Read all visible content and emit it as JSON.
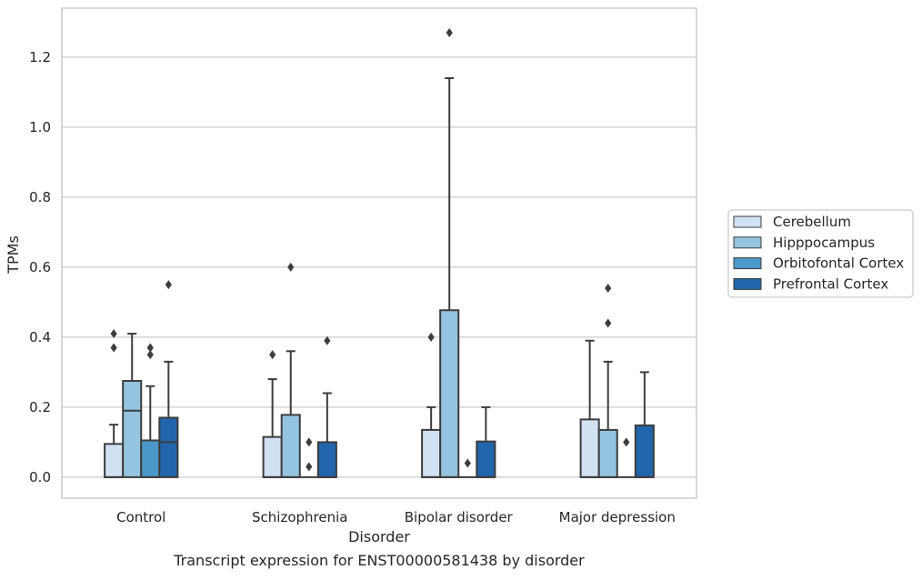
{
  "chart_data": {
    "type": "boxplot",
    "xlabel": "Disorder",
    "ylabel": "TPMs",
    "caption": "Transcript expression for ENST00000581438 by disorder",
    "ylim": [
      -0.06,
      1.34
    ],
    "yticks": [
      0.0,
      0.2,
      0.4,
      0.6,
      0.8,
      1.0,
      1.2
    ],
    "ytick_labels": [
      "0.0",
      "0.2",
      "0.4",
      "0.6",
      "0.8",
      "1.0",
      "1.2"
    ],
    "grid": "horizontal",
    "legend_position": "right-center",
    "categories": [
      "Control",
      "Schizophrenia",
      "Bipolar disorder",
      "Major depression"
    ],
    "series": [
      {
        "name": "Cerebellum",
        "color": "#d0e1f2",
        "boxes": [
          {
            "q1": 0.0,
            "median": 0.0,
            "q3": 0.095,
            "whisker_low": 0.0,
            "whisker_high": 0.15,
            "outliers": [
              0.37,
              0.41
            ]
          },
          {
            "q1": 0.0,
            "median": 0.0,
            "q3": 0.115,
            "whisker_low": 0.0,
            "whisker_high": 0.28,
            "outliers": [
              0.35
            ]
          },
          {
            "q1": 0.0,
            "median": 0.0,
            "q3": 0.135,
            "whisker_low": 0.0,
            "whisker_high": 0.2,
            "outliers": [
              0.4
            ]
          },
          {
            "q1": 0.0,
            "median": 0.0,
            "q3": 0.165,
            "whisker_low": 0.0,
            "whisker_high": 0.39,
            "outliers": []
          }
        ]
      },
      {
        "name": "Hipppocampus",
        "color": "#94c4df",
        "boxes": [
          {
            "q1": 0.0,
            "median": 0.19,
            "q3": 0.275,
            "whisker_low": 0.0,
            "whisker_high": 0.41,
            "outliers": []
          },
          {
            "q1": 0.0,
            "median": 0.0,
            "q3": 0.178,
            "whisker_low": 0.0,
            "whisker_high": 0.36,
            "outliers": [
              0.6
            ]
          },
          {
            "q1": 0.0,
            "median": 0.0,
            "q3": 0.477,
            "whisker_low": 0.0,
            "whisker_high": 1.14,
            "outliers": [
              1.27
            ]
          },
          {
            "q1": 0.0,
            "median": 0.0,
            "q3": 0.135,
            "whisker_low": 0.0,
            "whisker_high": 0.33,
            "outliers": [
              0.44,
              0.54
            ]
          }
        ]
      },
      {
        "name": "Orbitofontal Cortex",
        "color": "#4a98c9",
        "boxes": [
          {
            "q1": 0.0,
            "median": 0.0,
            "q3": 0.105,
            "whisker_low": 0.0,
            "whisker_high": 0.26,
            "outliers": [
              0.35,
              0.37
            ]
          },
          {
            "q1": 0.0,
            "median": 0.0,
            "q3": 0.0,
            "whisker_low": 0.0,
            "whisker_high": 0.0,
            "outliers": [
              0.03,
              0.1
            ]
          },
          {
            "q1": 0.0,
            "median": 0.0,
            "q3": 0.0,
            "whisker_low": 0.0,
            "whisker_high": 0.0,
            "outliers": [
              0.04
            ]
          },
          {
            "q1": 0.0,
            "median": 0.0,
            "q3": 0.0,
            "whisker_low": 0.0,
            "whisker_high": 0.0,
            "outliers": [
              0.1
            ]
          }
        ]
      },
      {
        "name": "Prefrontal Cortex",
        "color": "#2166ac",
        "boxes": [
          {
            "q1": 0.0,
            "median": 0.1,
            "q3": 0.17,
            "whisker_low": 0.0,
            "whisker_high": 0.33,
            "outliers": [
              0.55
            ]
          },
          {
            "q1": 0.0,
            "median": 0.0,
            "q3": 0.1,
            "whisker_low": 0.0,
            "whisker_high": 0.24,
            "outliers": [
              0.39
            ]
          },
          {
            "q1": 0.0,
            "median": 0.0,
            "q3": 0.102,
            "whisker_low": 0.0,
            "whisker_high": 0.2,
            "outliers": []
          },
          {
            "q1": 0.0,
            "median": 0.0,
            "q3": 0.148,
            "whisker_low": 0.0,
            "whisker_high": 0.3,
            "outliers": []
          }
        ]
      }
    ]
  }
}
